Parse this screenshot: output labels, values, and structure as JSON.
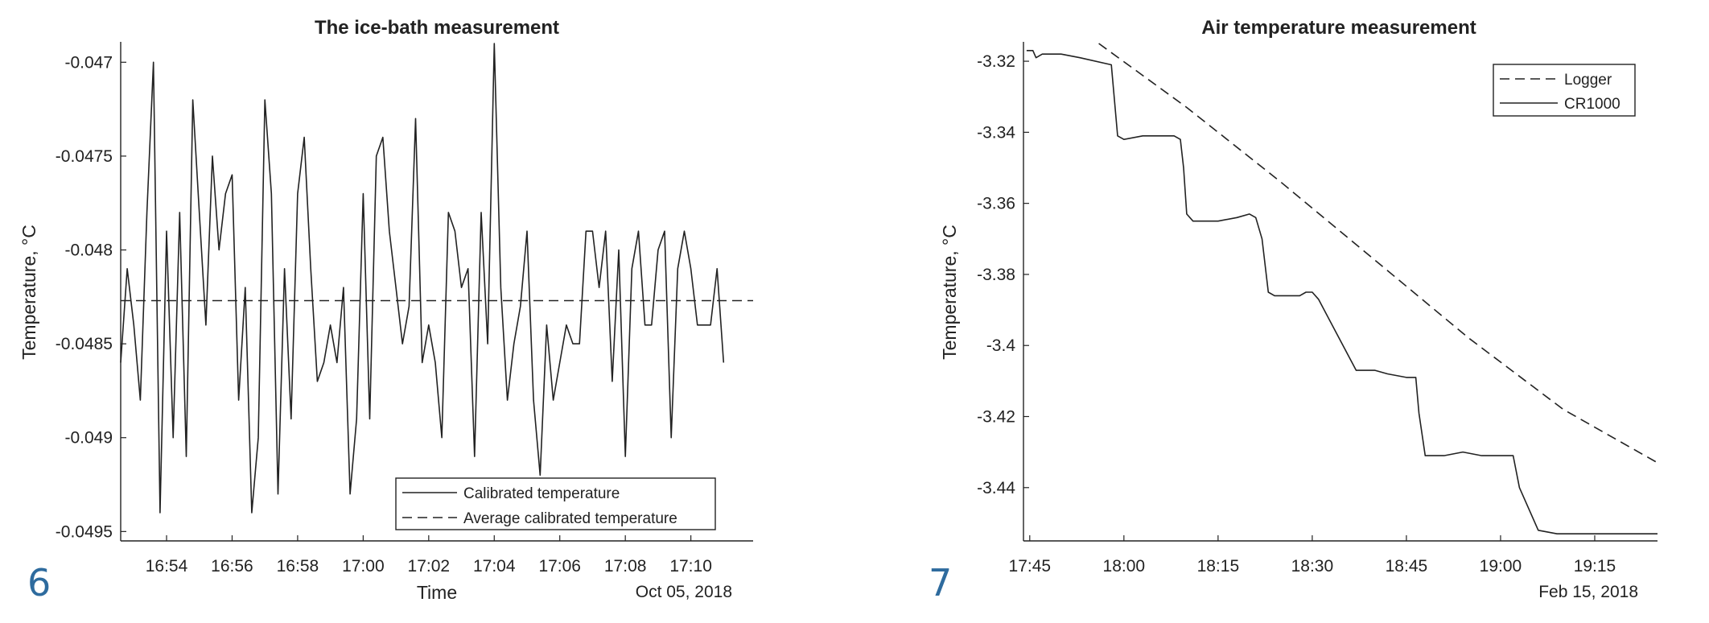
{
  "panels": [
    {
      "number": "6",
      "extra_label": "Oct 05, 2018",
      "chart_data": {
        "type": "line",
        "title": "The ice-bath measurement",
        "xlabel": "Time",
        "ylabel": "Temperature, °C",
        "x_ticks": [
          "16:54",
          "16:56",
          "16:58",
          "17:00",
          "17:02",
          "17:04",
          "17:06",
          "17:08",
          "17:10"
        ],
        "x_tick_minutes": [
          2,
          4,
          6,
          8,
          10,
          12,
          14,
          16,
          18
        ],
        "x_range_minutes": [
          0.6,
          19.9
        ],
        "y_ticks": [
          -0.047,
          -0.0475,
          -0.048,
          -0.0485,
          -0.049,
          -0.0495
        ],
        "y_tick_labels": [
          "-0.047",
          "-0.0475",
          "-0.048",
          "-0.0485",
          "-0.049",
          "-0.0495"
        ],
        "ylim": [
          -0.04955,
          -0.0469
        ],
        "legend_position": "bottom-right",
        "series": [
          {
            "name": "Calibrated temperature",
            "style": "solid",
            "x_start_minutes": 0.6,
            "x_step_minutes": 0.2,
            "values": [
              -0.0486,
              -0.0481,
              -0.0484,
              -0.0488,
              -0.0478,
              -0.047,
              -0.0494,
              -0.0479,
              -0.049,
              -0.0478,
              -0.0491,
              -0.0472,
              -0.0478,
              -0.0484,
              -0.0475,
              -0.048,
              -0.0477,
              -0.0476,
              -0.0488,
              -0.0482,
              -0.0494,
              -0.049,
              -0.0472,
              -0.0477,
              -0.0493,
              -0.0481,
              -0.0489,
              -0.0477,
              -0.0474,
              -0.0481,
              -0.0487,
              -0.0486,
              -0.0484,
              -0.0486,
              -0.0482,
              -0.0493,
              -0.0489,
              -0.0477,
              -0.0489,
              -0.0475,
              -0.0474,
              -0.0479,
              -0.0482,
              -0.0485,
              -0.0483,
              -0.0473,
              -0.0486,
              -0.0484,
              -0.0486,
              -0.049,
              -0.0478,
              -0.0479,
              -0.0482,
              -0.0481,
              -0.0491,
              -0.0478,
              -0.0485,
              -0.0469,
              -0.0482,
              -0.0488,
              -0.0485,
              -0.0483,
              -0.0479,
              -0.0488,
              -0.0492,
              -0.0484,
              -0.0488,
              -0.0486,
              -0.0484,
              -0.0485,
              -0.0485,
              -0.0479,
              -0.0479,
              -0.0482,
              -0.0479,
              -0.0487,
              -0.048,
              -0.0491,
              -0.0481,
              -0.0479,
              -0.0484,
              -0.0484,
              -0.048,
              -0.0479,
              -0.049,
              -0.0481,
              -0.0479,
              -0.0481,
              -0.0484,
              -0.0484,
              -0.0484,
              -0.0481,
              -0.0486
            ]
          },
          {
            "name": "Average calibrated temperature",
            "style": "dashed",
            "values": [
              -0.04827
            ]
          }
        ]
      }
    },
    {
      "number": "7",
      "extra_label": "Feb 15, 2018",
      "chart_data": {
        "type": "line",
        "title": "Air temperature measurement",
        "xlabel": "",
        "ylabel": "Temperature, °C",
        "x_ticks": [
          "17:45",
          "18:00",
          "18:15",
          "18:30",
          "18:45",
          "19:00",
          "19:15"
        ],
        "x_tick_minutes": [
          1065,
          1080,
          1095,
          1110,
          1125,
          1140,
          1155
        ],
        "x_range_minutes": [
          1064,
          1165
        ],
        "y_ticks": [
          -3.32,
          -3.34,
          -3.36,
          -3.38,
          -3.4,
          -3.42,
          -3.44
        ],
        "y_tick_labels": [
          "-3.32",
          "-3.34",
          "-3.36",
          "-3.38",
          "-3.4",
          "-3.42",
          "-3.44"
        ],
        "ylim": [
          -3.455,
          -3.315
        ],
        "legend_position": "top-right",
        "series": [
          {
            "name": "Logger",
            "style": "dashed",
            "x_minutes": [
              1076,
              1090,
              1105,
              1120,
              1135,
              1150,
              1165
            ],
            "values": [
              -3.315,
              -3.333,
              -3.354,
              -3.376,
              -3.398,
              -3.418,
              -3.433
            ]
          },
          {
            "name": "CR1000",
            "style": "solid",
            "x_minutes": [
              1064.5,
              1065.5,
              1066,
              1067,
              1070,
              1073,
              1078,
              1078.5,
              1079,
              1080,
              1083,
              1086,
              1088,
              1089,
              1089.5,
              1090,
              1091,
              1095,
              1098,
              1100,
              1101,
              1102,
              1103,
              1104,
              1105,
              1106,
              1108,
              1109,
              1110,
              1111,
              1114,
              1117,
              1120,
              1122,
              1125,
              1126,
              1126.5,
              1127,
              1128,
              1131,
              1134,
              1137,
              1140,
              1141,
              1141.5,
              1142,
              1143,
              1146,
              1149,
              1152,
              1155,
              1156,
              1156.5,
              1157,
              1157.5,
              1158,
              1158.5,
              1159,
              1160,
              1162,
              1165
            ],
            "values": [
              -3.317,
              -3.317,
              -3.319,
              -3.318,
              -3.318,
              -3.319,
              -3.321,
              -3.331,
              -3.341,
              -3.342,
              -3.341,
              -3.341,
              -3.341,
              -3.342,
              -3.35,
              -3.363,
              -3.365,
              -3.365,
              -3.364,
              -3.363,
              -3.364,
              -3.37,
              -3.385,
              -3.386,
              -3.386,
              -3.386,
              -3.386,
              -3.385,
              -3.385,
              -3.387,
              -3.397,
              -3.407,
              -3.407,
              -3.408,
              -3.409,
              -3.409,
              -3.409,
              -3.419,
              -3.431,
              -3.431,
              -3.43,
              -3.431,
              -3.431,
              -3.431,
              -3.431,
              -3.431,
              -3.44,
              -3.452,
              -3.453,
              -3.453,
              -3.453,
              -3.453,
              -3.453,
              -3.453,
              -3.453,
              -3.453,
              -3.453,
              -3.453,
              -3.453,
              -3.453,
              -3.453
            ]
          }
        ]
      }
    }
  ]
}
